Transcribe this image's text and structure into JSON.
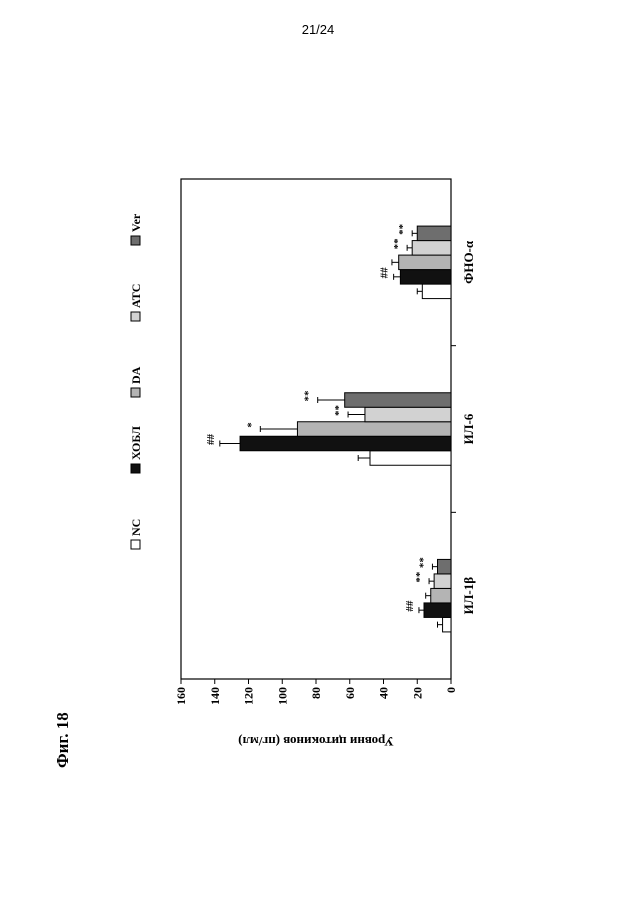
{
  "page": {
    "number": "21/24",
    "figure_label": "Фиг. 18"
  },
  "chart_data": {
    "type": "bar",
    "orientation": "rotated -90deg",
    "categories": [
      "ИЛ-1β",
      "ИЛ-6",
      "ФНО-α"
    ],
    "series": [
      {
        "name": "NC",
        "color": "#ffffff",
        "values": [
          5,
          48,
          17
        ],
        "errors": [
          3,
          7,
          3
        ],
        "annotations": [
          "",
          "",
          ""
        ]
      },
      {
        "name": "ХОБЛ",
        "color": "#111111",
        "values": [
          16,
          125,
          30
        ],
        "errors": [
          3,
          12,
          4
        ],
        "annotations": [
          "##",
          "##",
          "##"
        ]
      },
      {
        "name": "DA",
        "color": "#b4b4b4",
        "values": [
          12,
          91,
          31
        ],
        "errors": [
          3,
          22,
          4
        ],
        "annotations": [
          "",
          "*",
          ""
        ]
      },
      {
        "name": "ATC",
        "color": "#d2d2d2",
        "values": [
          10,
          51,
          23
        ],
        "errors": [
          3,
          10,
          3
        ],
        "annotations": [
          "**",
          "**",
          "**"
        ]
      },
      {
        "name": "Ver",
        "color": "#6e6e6e",
        "values": [
          8,
          63,
          20
        ],
        "errors": [
          3,
          16,
          3
        ],
        "annotations": [
          "**",
          "**",
          "**"
        ]
      }
    ],
    "ylabel": "Уровни цитокинов (пг/мл)",
    "ylim": [
      0,
      160
    ],
    "yticks": [
      "0",
      "20",
      "40",
      "60",
      "80",
      "100",
      "120",
      "140",
      "160"
    ],
    "legend_position": "top"
  }
}
